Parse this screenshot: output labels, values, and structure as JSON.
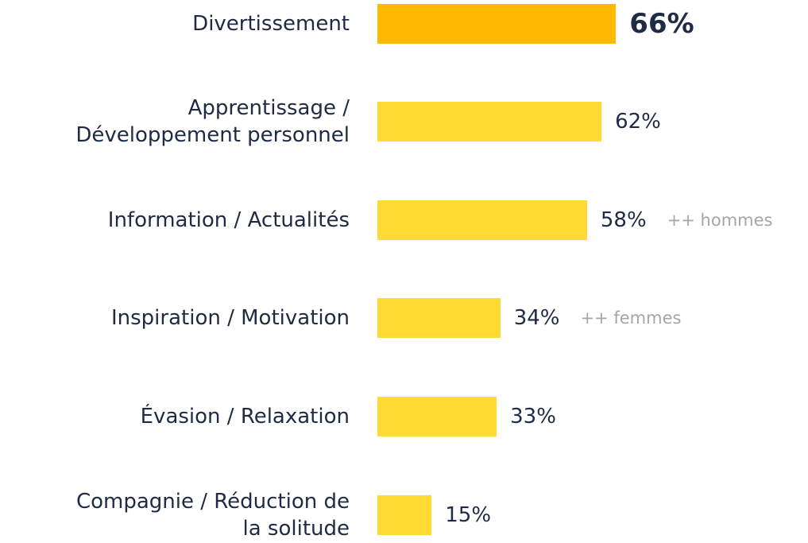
{
  "chart_data": {
    "type": "bar",
    "orientation": "horizontal",
    "categories": [
      "Divertissement",
      "Apprentissage /\nDéveloppement personnel",
      "Information / Actualités",
      "Inspiration / Motivation",
      "Évasion / Relaxation",
      "Compagnie / Réduction de\nla solitude"
    ],
    "values": [
      66,
      62,
      58,
      34,
      33,
      15
    ],
    "value_labels": [
      "66%",
      "62%",
      "58%",
      "34%",
      "33%",
      "15%"
    ],
    "colors": [
      "#ffb900",
      "#ffda33",
      "#ffda33",
      "#ffda33",
      "#ffda33",
      "#ffda33"
    ],
    "highlight": 0,
    "xlim": [
      0,
      100
    ],
    "annotations": [
      null,
      null,
      "++ hommes",
      "++ femmes",
      null,
      null
    ]
  }
}
